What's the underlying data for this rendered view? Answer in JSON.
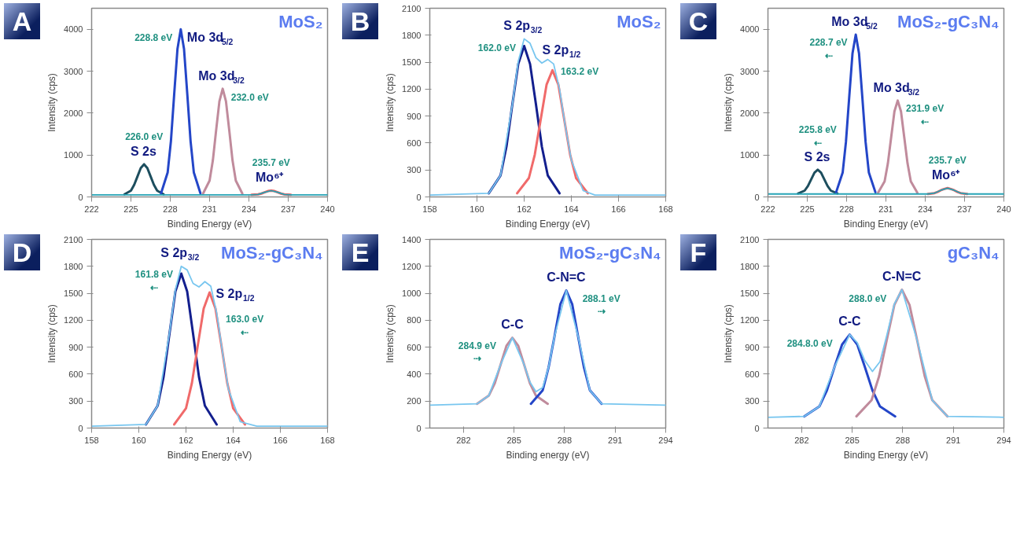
{
  "chart_data": [
    {
      "type": "line",
      "title": "MoS₂",
      "xlabel": "Binding Energy (eV)",
      "ylabel": "Intensity (cps)",
      "xlim": [
        222,
        240
      ],
      "ylim": [
        0,
        4500
      ],
      "xticks": [
        222,
        225,
        228,
        231,
        234,
        237,
        240
      ],
      "yticks": [
        0,
        1000,
        2000,
        3000,
        4000
      ],
      "series": [
        {
          "name": "S 2s",
          "color": "#1d4e5e",
          "x": [
            224.5,
            225,
            225.25,
            225.5,
            225.75,
            226,
            226.25,
            226.5,
            226.75,
            227,
            227.5
          ],
          "values": [
            60,
            150,
            290,
            490,
            690,
            780,
            690,
            490,
            290,
            150,
            60
          ]
        },
        {
          "name": "Mo 3d$_{5/2}$",
          "color": "#2446c8",
          "x": [
            227.3,
            227.8,
            228.05,
            228.3,
            228.55,
            228.8,
            229.05,
            229.3,
            229.55,
            229.8,
            230.3
          ],
          "values": [
            90,
            580,
            1330,
            2450,
            3530,
            4000,
            3530,
            2450,
            1330,
            580,
            90
          ]
        },
        {
          "name": "Mo 3d$_{3/2}$",
          "color": "#c08b9c",
          "x": [
            230.5,
            231,
            231.25,
            231.5,
            231.75,
            232,
            232.25,
            232.5,
            232.75,
            233,
            233.5
          ],
          "values": [
            80,
            390,
            870,
            1590,
            2280,
            2580,
            2280,
            1590,
            870,
            390,
            80
          ]
        },
        {
          "name": "Mo⁶⁺",
          "color": "#f05a5a",
          "x": [
            234.2,
            234.7,
            234.95,
            235.2,
            235.45,
            235.7,
            235.95,
            236.2,
            236.45,
            236.7,
            237.2
          ],
          "values": [
            50,
            60,
            80,
            110,
            140,
            150,
            140,
            110,
            80,
            60,
            50
          ]
        },
        {
          "color": "#27a4b6",
          "x": [
            222,
            234.2,
            234.7,
            235.2,
            235.7,
            236.2,
            236.7,
            237.2,
            240
          ],
          "values": [
            50,
            50,
            60,
            110,
            150,
            110,
            60,
            50,
            50
          ]
        }
      ],
      "annotations": [
        "A",
        {
          "text": "228.8 eV",
          "x": 228.8,
          "y": 4000
        },
        {
          "text": "232.0 eV",
          "x": 232.0,
          "y": 2580
        },
        {
          "text": "226.0 eV",
          "x": 226.0,
          "y": 780
        },
        {
          "text": "235.7 eV",
          "x": 235.7,
          "y": 150
        }
      ]
    },
    {
      "type": "line",
      "title": "MoS₂",
      "xlabel": "Binding Energy (eV)",
      "ylabel": "Intensity (cps)",
      "xlim": [
        158,
        168
      ],
      "ylim": [
        0,
        2100
      ],
      "xticks": [
        158,
        160,
        162,
        164,
        166,
        168
      ],
      "yticks": [
        0,
        300,
        600,
        900,
        1200,
        1500,
        1800,
        2100
      ],
      "series": [
        {
          "name": "S 2p$_{3/2}$",
          "color": "#131f8e",
          "x": [
            160.5,
            161,
            161.25,
            161.5,
            161.75,
            162,
            162.25,
            162.5,
            162.75,
            163,
            163.5
          ],
          "values": [
            40,
            240,
            560,
            1030,
            1480,
            1680,
            1480,
            1030,
            560,
            240,
            40
          ]
        },
        {
          "name": "S 2p$_{1/2}$",
          "color": "#f06a6a",
          "x": [
            161.7,
            162.2,
            162.45,
            162.7,
            162.95,
            163.2,
            163.45,
            163.7,
            163.95,
            164.2,
            164.7
          ],
          "values": [
            40,
            210,
            470,
            860,
            1250,
            1410,
            1250,
            860,
            470,
            210,
            40
          ]
        },
        {
          "color": "#78c6ef",
          "x": [
            158,
            160.5,
            161,
            161.5,
            161.75,
            162,
            162.25,
            162.5,
            162.75,
            163,
            163.25,
            163.5,
            163.75,
            164,
            164.5,
            165,
            168
          ],
          "values": [
            20,
            40,
            240,
            1030,
            1510,
            1760,
            1710,
            1550,
            1490,
            1530,
            1480,
            1200,
            780,
            410,
            70,
            20,
            20
          ]
        }
      ],
      "annotations": [
        "B",
        {
          "text": "162.0 eV",
          "x": 162.0,
          "y": 1680
        },
        {
          "text": "163.2 eV",
          "x": 163.2,
          "y": 1410
        }
      ]
    },
    {
      "type": "line",
      "title": "MoS₂-gC₃N₄",
      "xlabel": "Binding Energy (eV)",
      "ylabel": "Intensity (cps)",
      "xlim": [
        222,
        240
      ],
      "ylim": [
        0,
        4500
      ],
      "xticks": [
        222,
        225,
        228,
        231,
        234,
        237,
        240
      ],
      "yticks": [
        0,
        1000,
        2000,
        3000,
        4000
      ],
      "series": [
        {
          "name": "S 2s",
          "color": "#1d4e5e",
          "x": [
            224.3,
            224.8,
            225.05,
            225.3,
            225.55,
            225.8,
            226.05,
            226.3,
            226.55,
            226.8,
            227.3
          ],
          "values": [
            80,
            150,
            260,
            420,
            580,
            650,
            580,
            420,
            260,
            150,
            80
          ]
        },
        {
          "name": "Mo 3d$_{5/2}$",
          "color": "#2446c8",
          "x": [
            227.2,
            227.7,
            227.95,
            228.2,
            228.45,
            228.7,
            228.95,
            229.2,
            229.45,
            229.7,
            230.2
          ],
          "values": [
            110,
            580,
            1310,
            2380,
            3420,
            3870,
            3420,
            2380,
            1310,
            580,
            110
          ]
        },
        {
          "name": "Mo 3d$_{3/2}$",
          "color": "#c08b9c",
          "x": [
            230.4,
            230.9,
            231.15,
            231.4,
            231.65,
            231.9,
            232.15,
            232.4,
            232.65,
            232.9,
            233.4
          ],
          "values": [
            100,
            370,
            800,
            1420,
            2040,
            2300,
            2040,
            1420,
            800,
            370,
            100
          ]
        },
        {
          "name": "Mo⁶⁺",
          "color": "#f05a5a",
          "x": [
            234.2,
            234.7,
            234.95,
            235.2,
            235.45,
            235.7,
            235.95,
            236.2,
            236.45,
            236.7,
            237.2
          ],
          "values": [
            70,
            90,
            120,
            160,
            190,
            210,
            190,
            160,
            120,
            90,
            70
          ]
        },
        {
          "color": "#27a4b6",
          "x": [
            222,
            234.2,
            234.7,
            235.2,
            235.7,
            236.2,
            236.7,
            237.2,
            240
          ],
          "values": [
            70,
            70,
            90,
            160,
            210,
            160,
            90,
            70,
            70
          ]
        }
      ],
      "annotations": [
        "C",
        {
          "text": "228.7 eV\n⇠",
          "x": 228.7,
          "y": 3870
        },
        {
          "text": "231.9 eV\n⇠",
          "x": 231.9,
          "y": 2300
        },
        {
          "text": "225.8 eV\n⇠",
          "x": 225.8,
          "y": 650
        },
        {
          "text": "235.7 eV",
          "x": 235.7,
          "y": 210
        }
      ]
    },
    {
      "type": "line",
      "title": "MoS₂-gC₃N₄",
      "xlabel": "Binding Energy (eV)",
      "ylabel": "Intensity (cps)",
      "xlim": [
        158,
        168
      ],
      "ylim": [
        0,
        2100
      ],
      "xticks": [
        158,
        160,
        162,
        164,
        166,
        168
      ],
      "yticks": [
        0,
        300,
        600,
        900,
        1200,
        1500,
        1800,
        2100
      ],
      "series": [
        {
          "name": "S 2p$_{3/2}$",
          "color": "#131f8e",
          "x": [
            160.3,
            160.8,
            161.05,
            161.3,
            161.55,
            161.8,
            162.05,
            162.3,
            162.55,
            162.8,
            163.3
          ],
          "values": [
            40,
            250,
            570,
            1050,
            1520,
            1720,
            1520,
            1050,
            570,
            250,
            40
          ]
        },
        {
          "name": "S 2p$_{1/2}$",
          "color": "#f06a6a",
          "x": [
            161.5,
            162,
            162.25,
            162.5,
            162.75,
            163,
            163.25,
            163.5,
            163.75,
            164,
            164.5
          ],
          "values": [
            40,
            220,
            500,
            920,
            1330,
            1510,
            1330,
            920,
            500,
            220,
            40
          ]
        },
        {
          "color": "#78c6ef",
          "x": [
            158,
            160.3,
            160.8,
            161.3,
            161.55,
            161.8,
            162.05,
            162.3,
            162.55,
            162.8,
            163.05,
            163.3,
            163.55,
            163.8,
            164.3,
            165,
            168
          ],
          "values": [
            20,
            40,
            250,
            1060,
            1540,
            1800,
            1760,
            1610,
            1570,
            1630,
            1580,
            1280,
            840,
            430,
            70,
            20,
            20
          ]
        }
      ],
      "annotations": [
        "D",
        {
          "text": "161.8 eV\n⇠",
          "x": 161.8,
          "y": 1720
        },
        {
          "text": "163.0 eV\n⇠",
          "x": 163.0,
          "y": 1510
        }
      ]
    },
    {
      "type": "line",
      "title": "MoS₂-gC₃N₄",
      "xlabel": "Binding energy (eV)",
      "ylabel": "Intensity (cps)",
      "xlim": [
        280,
        294
      ],
      "ylim": [
        0,
        1400
      ],
      "xticks": [
        282,
        285,
        288,
        291,
        294
      ],
      "yticks": [
        0,
        200,
        400,
        600,
        800,
        1000,
        1200,
        1400
      ],
      "series": [
        {
          "name": "C-C",
          "color": "#c08b9c",
          "x": [
            282.8,
            283.5,
            283.85,
            284.2,
            284.55,
            284.9,
            285.25,
            285.6,
            285.95,
            286.3,
            287.0
          ],
          "values": [
            180,
            240,
            330,
            470,
            610,
            670,
            610,
            470,
            330,
            240,
            180
          ]
        },
        {
          "name": "C-N=C",
          "color": "#2446c8",
          "x": [
            286.0,
            286.7,
            287.05,
            287.4,
            287.75,
            288.1,
            288.45,
            288.8,
            289.15,
            289.5,
            290.2
          ],
          "values": [
            180,
            280,
            450,
            680,
            920,
            1020,
            920,
            680,
            450,
            280,
            180
          ]
        },
        {
          "color": "#78c6ef",
          "x": [
            280,
            282.8,
            283.5,
            284.2,
            284.9,
            285.6,
            285.95,
            286.3,
            286.7,
            287.05,
            287.4,
            288.1,
            288.8,
            289.5,
            290.2,
            294
          ],
          "values": [
            170,
            180,
            240,
            470,
            670,
            470,
            340,
            270,
            300,
            450,
            680,
            1020,
            680,
            280,
            180,
            170
          ]
        }
      ],
      "annotations": [
        "E",
        {
          "text": "288.1 eV\n⇢",
          "x": 288.1,
          "y": 1020
        },
        {
          "text": "284.9 eV\n⇢",
          "x": 284.9,
          "y": 670
        }
      ]
    },
    {
      "type": "line",
      "title": "gC₃N₄",
      "xlabel": "Binding Energy (eV)",
      "ylabel": "Intensity (cps)",
      "xlim": [
        280,
        294
      ],
      "ylim": [
        0,
        2100
      ],
      "xticks": [
        282,
        285,
        288,
        291,
        294
      ],
      "yticks": [
        0,
        300,
        600,
        900,
        1200,
        1500,
        1800,
        2100
      ],
      "series": [
        {
          "name": "C-C",
          "color": "#2446c8",
          "x": [
            282.15,
            283.05,
            283.5,
            283.95,
            284.4,
            284.85,
            285.3,
            285.75,
            286.2,
            286.65,
            287.55
          ],
          "values": [
            130,
            240,
            420,
            680,
            930,
            1040,
            930,
            680,
            420,
            240,
            130
          ]
        },
        {
          "name": "C-N=C",
          "color": "#c08b9c",
          "x": [
            285.25,
            286.15,
            286.6,
            287.05,
            287.5,
            287.95,
            288.4,
            288.85,
            289.3,
            289.75,
            290.65
          ],
          "values": [
            130,
            310,
            580,
            980,
            1370,
            1540,
            1370,
            980,
            580,
            310,
            130
          ]
        },
        {
          "color": "#78c6ef",
          "x": [
            280,
            282.15,
            283.05,
            283.95,
            284.85,
            285.3,
            285.75,
            286.2,
            286.65,
            287.05,
            287.5,
            287.95,
            288.85,
            289.75,
            290.65,
            294
          ],
          "values": [
            120,
            130,
            240,
            680,
            1040,
            950,
            750,
            630,
            740,
            1030,
            1380,
            1540,
            980,
            310,
            130,
            120
          ]
        }
      ],
      "annotations": [
        "F",
        {
          "text": "288.0 eV",
          "x": 288.0,
          "y": 1540
        },
        {
          "text": "284.8.0 eV",
          "x": 284.8,
          "y": 1040
        }
      ]
    }
  ]
}
